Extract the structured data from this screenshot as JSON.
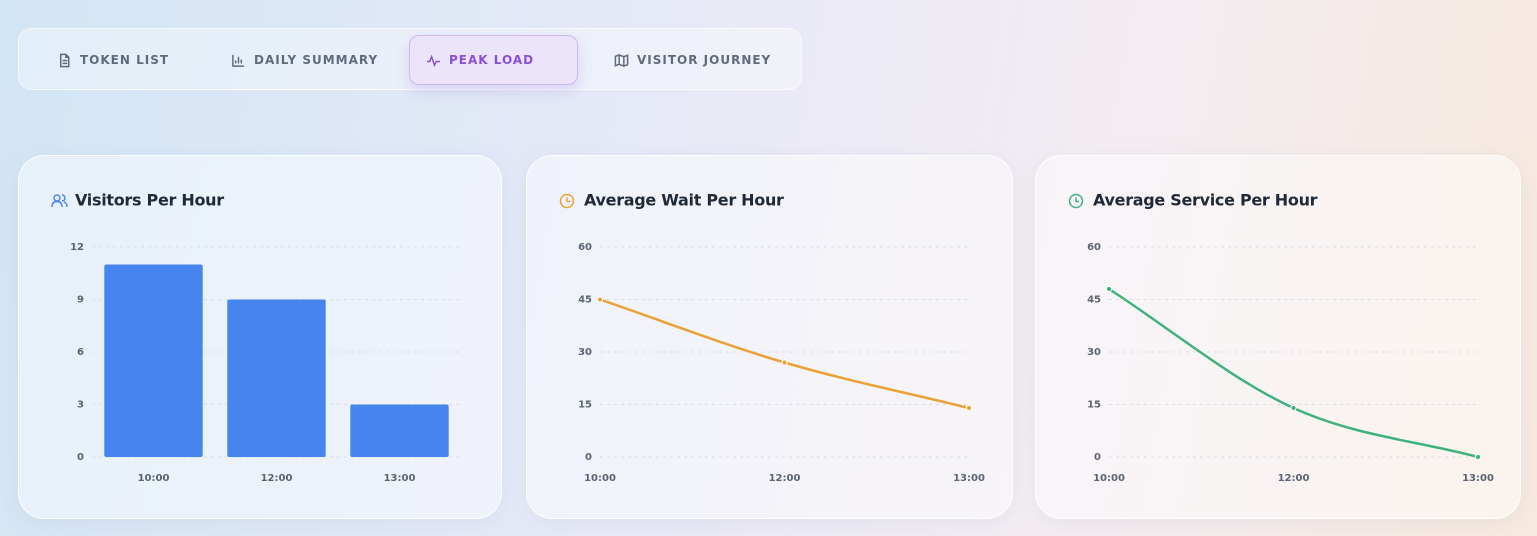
{
  "tabs": [
    "TOKEN LIST",
    "DAILY SUMMARY",
    "PEAK LOAD",
    "VISITOR JOURNEY"
  ],
  "chart_data": [
    {
      "type": "bar",
      "title": "Visitors Per Hour",
      "categories": [
        "10:00",
        "12:00",
        "13:00"
      ],
      "values": [
        11,
        9,
        3
      ],
      "color": "#4785ee",
      "ylim": [
        0,
        12
      ],
      "yticks": [
        0,
        3,
        6,
        9,
        12
      ],
      "grid": true
    },
    {
      "type": "line",
      "title": "Average Wait Per Hour",
      "categories": [
        "10:00",
        "12:00",
        "13:00"
      ],
      "values": [
        45,
        27,
        14
      ],
      "color": "#eaa236",
      "ylim": [
        0,
        60
      ],
      "yticks": [
        0,
        15,
        30,
        45,
        60
      ],
      "grid": true
    },
    {
      "type": "line",
      "title": "Average Service Per Hour",
      "categories": [
        "10:00",
        "12:00",
        "13:00"
      ],
      "values": [
        48,
        14,
        0
      ],
      "color": "#40b27d",
      "ylim": [
        0,
        60
      ],
      "yticks": [
        0,
        15,
        30,
        45,
        60
      ],
      "grid": true
    }
  ]
}
